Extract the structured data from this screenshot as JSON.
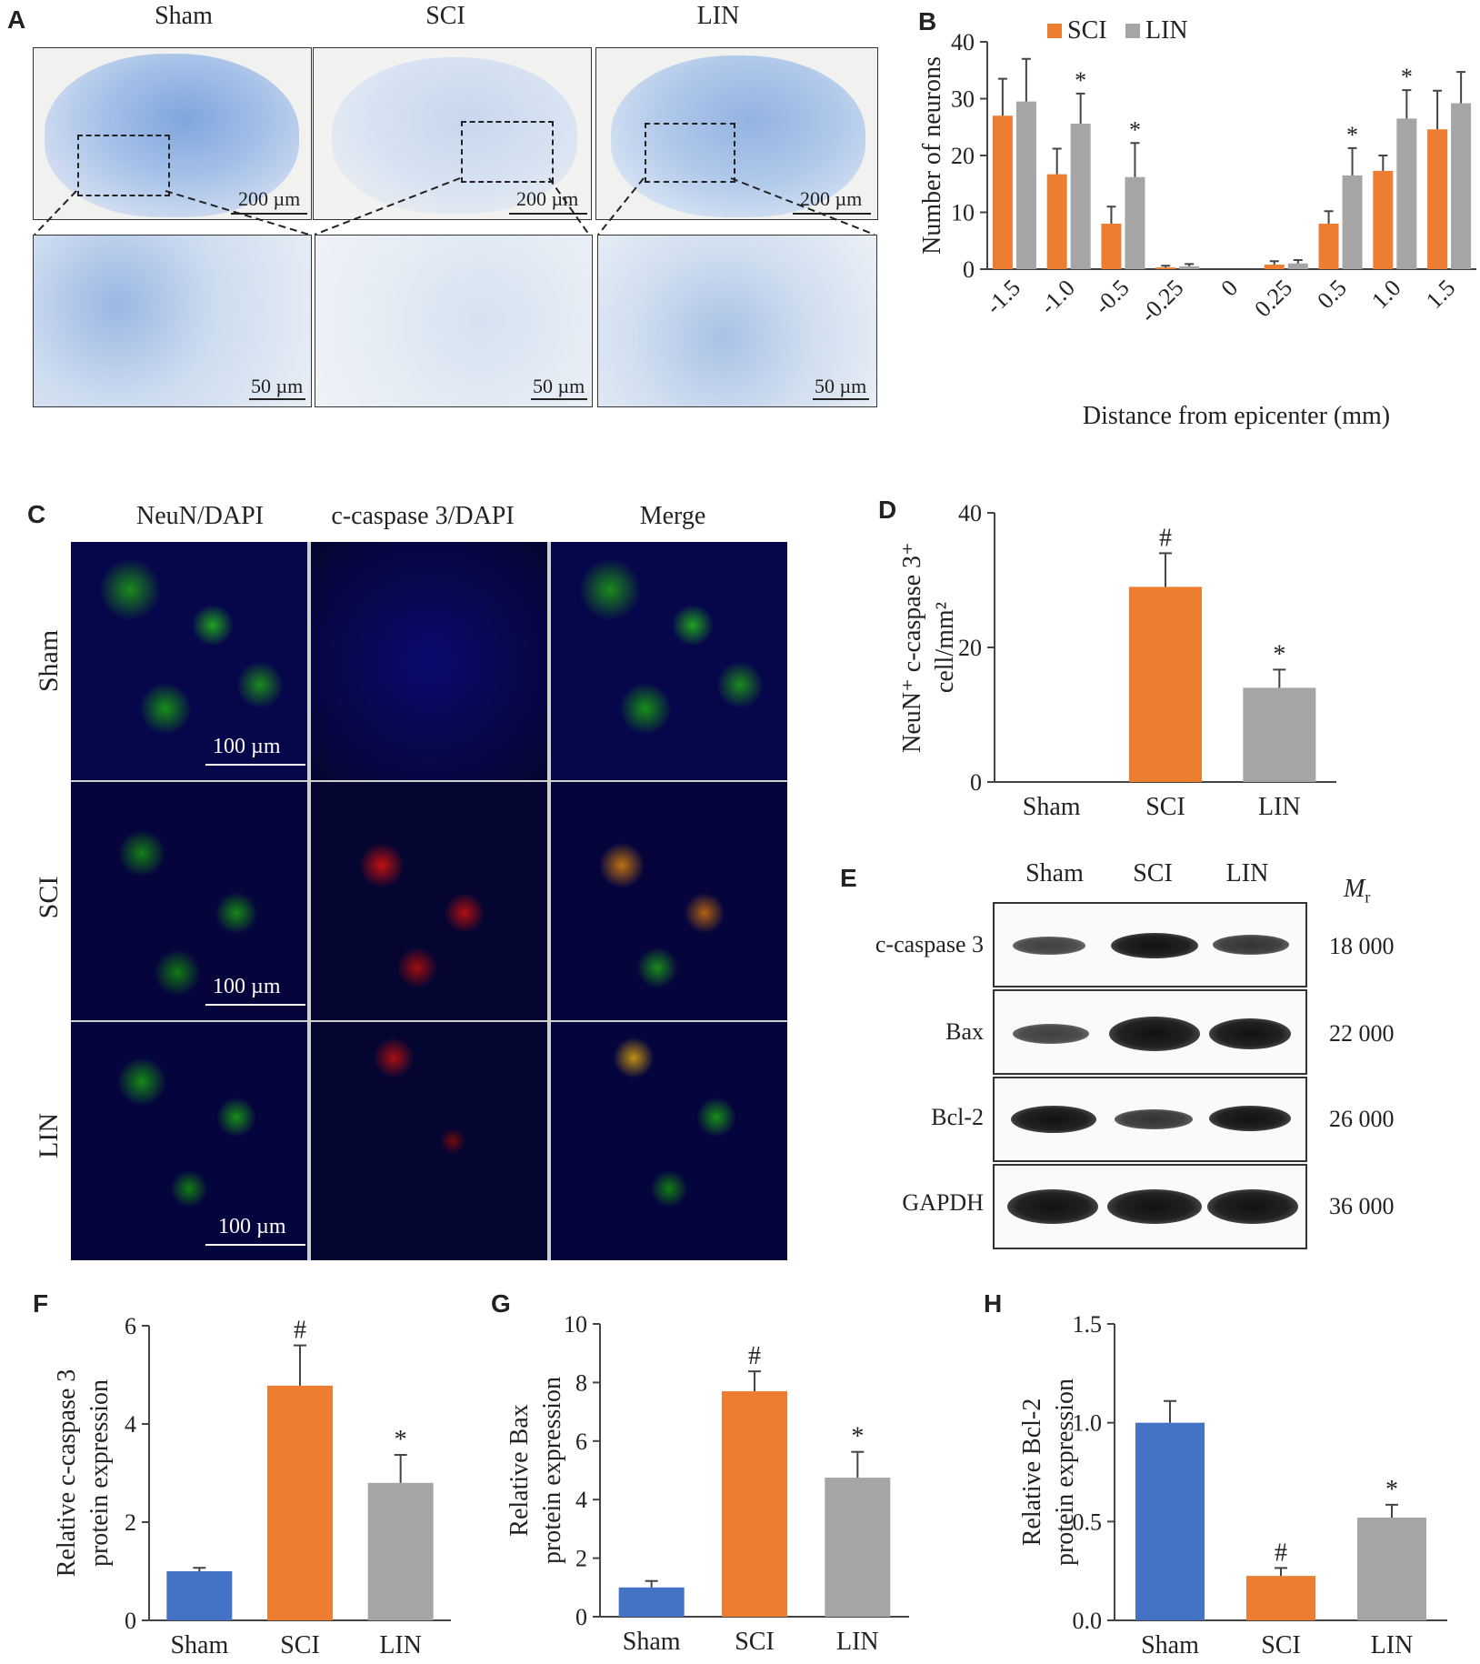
{
  "panels": {
    "A": {
      "label": "A",
      "columns": [
        "Sham",
        "SCI",
        "LIN"
      ],
      "scale_low": "200 µm",
      "scale_high": "50 µm"
    },
    "B": {
      "label": "B"
    },
    "C": {
      "label": "C",
      "columns": [
        "NeuN/DAPI",
        "c-caspase 3/DAPI",
        "Merge"
      ],
      "rows": [
        "Sham",
        "SCI",
        "LIN"
      ],
      "scale": "100 µm"
    },
    "D": {
      "label": "D"
    },
    "E": {
      "label": "E",
      "lanes": [
        "Sham",
        "SCI",
        "LIN"
      ],
      "mr_label": "M",
      "mr_sub": "r",
      "proteins": [
        "c-caspase 3",
        "Bax",
        "Bcl-2",
        "GAPDH"
      ],
      "mr_values": [
        "18 000",
        "22 000",
        "26 000",
        "36 000"
      ]
    },
    "F": {
      "label": "F"
    },
    "G": {
      "label": "G"
    },
    "H": {
      "label": "H"
    }
  },
  "colors": {
    "sham": "#4472c4",
    "sci": "#ed7d31",
    "lin": "#a5a5a5"
  },
  "chart_data": [
    {
      "id": "B",
      "type": "bar",
      "categories": [
        "-1.5",
        "-1.0",
        "-0.5",
        "-0.25",
        "0",
        "0.25",
        "0.5",
        "1.0",
        "1.5"
      ],
      "series": [
        {
          "name": "SCI",
          "values": [
            27,
            16.7,
            8,
            0.3,
            0,
            0.8,
            8,
            17.3,
            24.6
          ],
          "errors": [
            6.5,
            4.5,
            3,
            0.3,
            0,
            0.6,
            2.2,
            2.7,
            6.8
          ],
          "sig": [
            "",
            "",
            "",
            "",
            "",
            "",
            "",
            "",
            ""
          ]
        },
        {
          "name": "LIN",
          "values": [
            29.5,
            25.6,
            16.2,
            0.5,
            0,
            1,
            16.5,
            26.5,
            29.2
          ],
          "errors": [
            7.5,
            5.3,
            6,
            0.4,
            0,
            0.6,
            4.8,
            5,
            5.5
          ],
          "sig": [
            "",
            "*",
            "*",
            "",
            "",
            "",
            "*",
            "*",
            ""
          ]
        }
      ],
      "xlabel": "Distance from epicenter (mm)",
      "ylabel": "Number of neurons",
      "ylim": [
        0,
        40
      ],
      "yticks": [
        0,
        10,
        20,
        30,
        40
      ],
      "legend": "top-left"
    },
    {
      "id": "D",
      "type": "bar",
      "categories": [
        "Sham",
        "SCI",
        "LIN"
      ],
      "values": [
        0,
        29,
        14
      ],
      "errors": [
        0,
        5,
        2.7
      ],
      "sig": [
        "",
        "#",
        "*"
      ],
      "ylabel_lines": [
        "NeuN⁺ c-caspase 3⁺",
        "cell/mm²"
      ],
      "ylim": [
        0,
        40
      ],
      "yticks": [
        0,
        20,
        40
      ]
    },
    {
      "id": "F",
      "type": "bar",
      "categories": [
        "Sham",
        "SCI",
        "LIN"
      ],
      "values": [
        1,
        4.78,
        2.8
      ],
      "errors": [
        0.07,
        0.82,
        0.57
      ],
      "sig": [
        "",
        "#",
        "*"
      ],
      "ylabel_lines": [
        "Relative c-caspase 3",
        "protein expression"
      ],
      "ylim": [
        0,
        6
      ],
      "yticks": [
        0,
        2,
        4,
        6
      ]
    },
    {
      "id": "G",
      "type": "bar",
      "categories": [
        "Sham",
        "SCI",
        "LIN"
      ],
      "values": [
        1,
        7.7,
        4.75
      ],
      "errors": [
        0.22,
        0.68,
        0.88
      ],
      "sig": [
        "",
        "#",
        "*"
      ],
      "ylabel_lines": [
        "Relative Bax",
        "protein expression"
      ],
      "ylim": [
        0,
        10
      ],
      "yticks": [
        0,
        2,
        4,
        6,
        8,
        10
      ]
    },
    {
      "id": "H",
      "type": "bar",
      "categories": [
        "Sham",
        "SCI",
        "LIN"
      ],
      "values": [
        1,
        0.225,
        0.52
      ],
      "errors": [
        0.11,
        0.04,
        0.065
      ],
      "sig": [
        "",
        "#",
        "*"
      ],
      "ylabel_lines": [
        "Relative Bcl-2",
        "protein expression"
      ],
      "ylim": [
        0,
        1.5
      ],
      "yticks": [
        "0.0",
        "0.5",
        "1.0",
        "1.5"
      ]
    }
  ]
}
